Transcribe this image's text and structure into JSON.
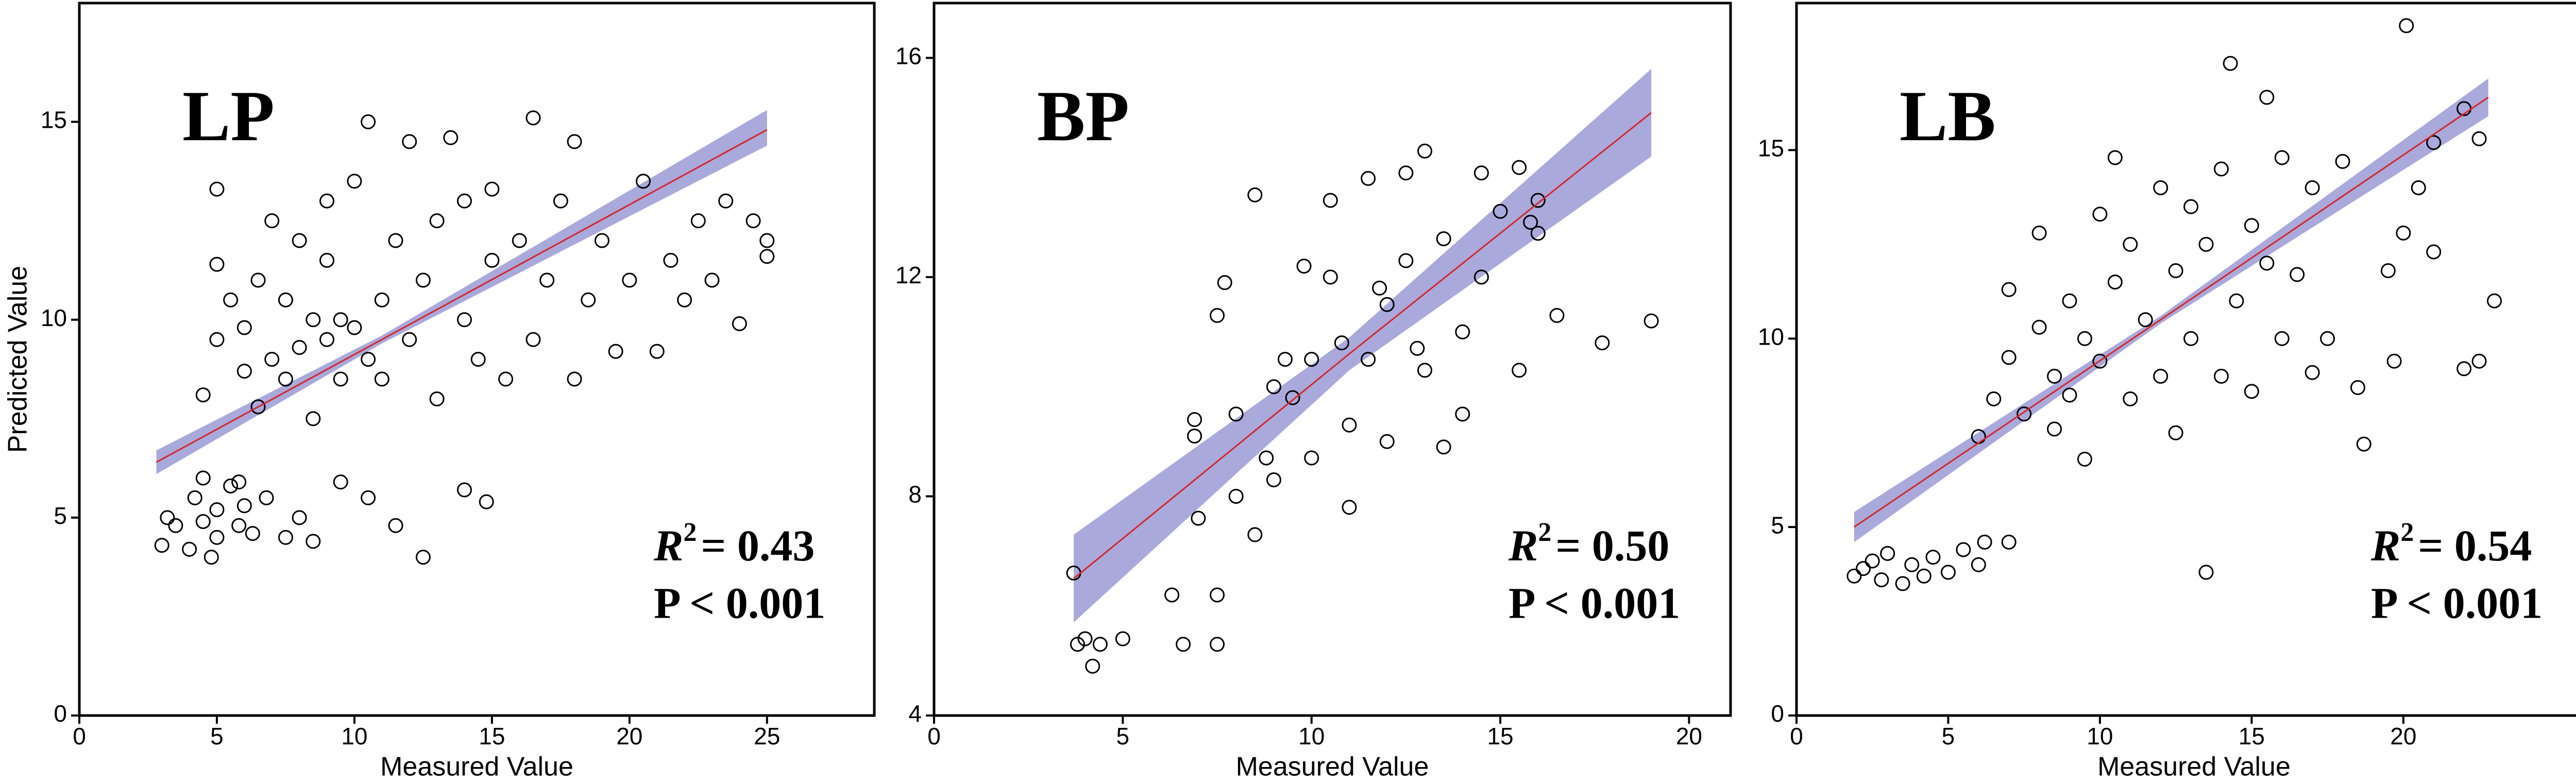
{
  "chart_data": [
    {
      "type": "scatter",
      "label": "LP",
      "xlabel": "Measured Value",
      "ylabel": "Predicted Value",
      "r2_symbol": "R",
      "r2_sup": "2",
      "r2_value": "= 0.43",
      "p_text": "P < 0.001",
      "xlim": [
        0,
        28.9
      ],
      "ylim": [
        0,
        18
      ],
      "xticks": [
        0,
        5,
        10,
        15,
        20,
        25
      ],
      "yticks": [
        0,
        5,
        10,
        15
      ],
      "point_color": "#000000",
      "x": [
        3,
        3.5,
        4,
        4.2,
        4.5,
        5,
        5,
        5.5,
        5.8,
        6,
        6.3,
        6.8,
        3.2,
        4.8,
        7.5,
        8,
        8.5,
        9.5,
        10.5,
        11.5,
        12.5,
        14,
        14.8,
        4.5,
        5.8,
        4.5,
        5,
        5,
        5,
        5.5,
        6,
        6,
        6.5,
        6.5,
        7,
        7,
        7.5,
        7.5,
        8,
        8,
        8.5,
        8.5,
        9,
        9,
        9,
        9.5,
        9.5,
        10,
        10,
        10.5,
        10.5,
        11,
        11,
        11.5,
        12,
        12,
        12.5,
        13,
        13,
        13.5,
        14,
        14,
        14.5,
        15,
        15,
        15.5,
        16,
        16.5,
        16.5,
        17,
        17.5,
        18,
        18,
        18.5,
        19,
        19.5,
        20,
        20.5,
        21,
        21.5,
        22,
        22.5,
        23,
        23.5,
        24,
        24.5,
        25,
        25
      ],
      "y": [
        4.3,
        4.8,
        4.2,
        5.5,
        4.9,
        5.2,
        4.5,
        5.8,
        4.8,
        5.3,
        4.6,
        5.5,
        5,
        4,
        4.5,
        5,
        4.4,
        5.9,
        5.5,
        4.8,
        4,
        5.7,
        5.4,
        6,
        5.9,
        8.1,
        9.5,
        11.4,
        13.3,
        10.5,
        8.7,
        9.8,
        7.8,
        11,
        12.5,
        9,
        8.5,
        10.5,
        9.3,
        12,
        7.5,
        10,
        9.5,
        11.5,
        13,
        8.5,
        10,
        9.8,
        13.5,
        15,
        9,
        10.5,
        8.5,
        12,
        9.5,
        14.5,
        11,
        8,
        12.5,
        14.6,
        10,
        13,
        9,
        11.5,
        13.3,
        8.5,
        12,
        15.1,
        9.5,
        11,
        13,
        14.5,
        8.5,
        10.5,
        12,
        9.2,
        11,
        13.5,
        9.2,
        11.5,
        10.5,
        12.5,
        11,
        13,
        9.9,
        12.5,
        11.6,
        12
      ],
      "fit": {
        "color": "#d62728",
        "band_color": "#8c8cd0",
        "x": [
          2.8,
          11,
          25
        ],
        "y": [
          6.4,
          9.5,
          14.8
        ],
        "lower": [
          6.1,
          9.4,
          14.4
        ],
        "upper": [
          6.7,
          9.6,
          15.3
        ]
      }
    },
    {
      "type": "scatter",
      "label": "BP",
      "xlabel": "Measured Value",
      "r2_symbol": "R",
      "r2_sup": "2",
      "r2_value": "= 0.50",
      "p_text": "P < 0.001",
      "xlim": [
        0,
        21.1
      ],
      "ylim": [
        4,
        17
      ],
      "xticks": [
        0,
        5,
        10,
        15,
        20
      ],
      "yticks": [
        4,
        8,
        12,
        16
      ],
      "point_color": "#000000",
      "x": [
        3.7,
        3.8,
        4,
        4.2,
        4.4,
        5,
        6.3,
        6.6,
        7,
        7.5,
        7.5,
        7.5,
        7.7,
        8,
        8,
        8.5,
        8.5,
        9,
        9,
        9.5,
        10,
        10,
        10.5,
        10.5,
        11,
        11,
        11.5,
        11.5,
        12,
        12,
        12.5,
        12.5,
        13,
        13,
        13.5,
        13.5,
        14,
        14,
        14.5,
        14.5,
        15,
        15.5,
        15.5,
        16,
        16,
        16.5,
        17.7,
        19,
        6.9,
        6.9,
        9.3,
        10.8,
        11.8,
        12.8,
        8.8,
        9.8,
        15.8
      ],
      "y": [
        6.6,
        5.3,
        5.4,
        4.9,
        5.3,
        5.4,
        6.2,
        5.3,
        7.6,
        5.3,
        6.2,
        11.3,
        11.9,
        9.5,
        8,
        7.3,
        13.5,
        10,
        8.3,
        9.8,
        10.5,
        8.7,
        13.4,
        12,
        9.3,
        7.8,
        13.8,
        10.5,
        11.5,
        9,
        13.9,
        12.3,
        10.3,
        14.3,
        8.9,
        12.7,
        9.5,
        11,
        13.9,
        12,
        13.2,
        14,
        10.3,
        13.4,
        12.8,
        11.3,
        10.8,
        11.2,
        9.1,
        9.4,
        10.5,
        10.8,
        11.8,
        10.7,
        8.7,
        12.2,
        13
      ],
      "fit": {
        "color": "#d62728",
        "band_color": "#8c8cd0",
        "x": [
          3.7,
          11,
          19
        ],
        "y": [
          6.5,
          10.6,
          15
        ],
        "lower": [
          5.7,
          10.3,
          14.2
        ],
        "upper": [
          7.3,
          10.9,
          15.8
        ]
      }
    },
    {
      "type": "scatter",
      "label": "LB",
      "xlabel": "Measured Value",
      "r2_symbol": "R",
      "r2_sup": "2",
      "r2_value": "= 0.54",
      "p_text": "P < 0.001",
      "xlim": [
        0,
        26.2
      ],
      "ylim": [
        0,
        18.9
      ],
      "xticks": [
        0,
        5,
        10,
        15,
        20
      ],
      "yticks": [
        0,
        5,
        10,
        15
      ],
      "point_color": "#000000",
      "x": [
        1.9,
        2.2,
        2.5,
        2.8,
        3,
        3.5,
        3.8,
        4.2,
        4.5,
        5,
        5.5,
        6,
        6.2,
        7,
        6,
        6.5,
        7,
        7,
        7.5,
        8,
        8,
        8.5,
        8.5,
        9,
        9,
        9.5,
        9.5,
        10,
        10,
        10.5,
        10.5,
        11,
        11,
        11.5,
        12,
        12,
        12.5,
        12.5,
        13,
        13,
        13.5,
        13.5,
        14,
        14,
        14.3,
        14.5,
        15,
        15,
        15.5,
        15.5,
        16,
        16,
        16.5,
        17,
        17,
        17.5,
        18,
        18.5,
        18.7,
        19.5,
        19.7,
        20,
        20.1,
        20.5,
        21,
        21,
        22,
        22.5,
        22,
        22.5,
        23
      ],
      "y": [
        3.7,
        3.9,
        4.1,
        3.6,
        4.3,
        3.5,
        4,
        3.7,
        4.2,
        3.8,
        4.4,
        4,
        4.6,
        4.6,
        7.4,
        8.4,
        9.5,
        11.3,
        8,
        10.3,
        12.8,
        9,
        7.6,
        11,
        8.5,
        10,
        6.8,
        13.3,
        9.4,
        11.5,
        14.8,
        8.4,
        12.5,
        10.5,
        14,
        9,
        11.8,
        7.5,
        13.5,
        10,
        12.5,
        3.8,
        14.5,
        9,
        17.3,
        11,
        13,
        8.6,
        16.4,
        12,
        14.8,
        10,
        11.7,
        14,
        9.1,
        10,
        14.7,
        8.7,
        7.2,
        11.8,
        9.4,
        12.8,
        18.3,
        14,
        12.3,
        15.2,
        9.2,
        15.3,
        16.1,
        9.4,
        11
      ],
      "fit": {
        "color": "#d62728",
        "band_color": "#8c8cd0",
        "x": [
          1.9,
          12,
          22.8
        ],
        "y": [
          5,
          10.5,
          16.4
        ],
        "lower": [
          4.6,
          10.4,
          15.9
        ],
        "upper": [
          5.4,
          10.6,
          16.9
        ]
      }
    }
  ]
}
